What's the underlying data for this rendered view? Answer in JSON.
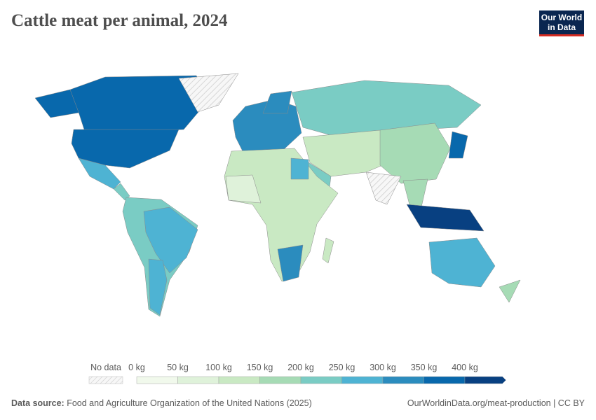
{
  "title": "Cattle meat per animal, 2024",
  "logo": {
    "line1": "Our World",
    "line2": "in Data"
  },
  "legend": {
    "no_data_label": "No data",
    "labels": [
      "0 kg",
      "50 kg",
      "100 kg",
      "150 kg",
      "200 kg",
      "250 kg",
      "300 kg",
      "350 kg",
      "400 kg"
    ],
    "colors": [
      "#f1f9ec",
      "#dff2da",
      "#c9e9c3",
      "#a6dbb5",
      "#7accc4",
      "#4eb3d3",
      "#2b8cbe",
      "#0868ac",
      "#084081"
    ]
  },
  "footer": {
    "source_label": "Data source:",
    "source_text": "Food and Agriculture Organization of the United Nations (2025)",
    "url": "OurWorldinData.org/meat-production | CC BY"
  }
}
